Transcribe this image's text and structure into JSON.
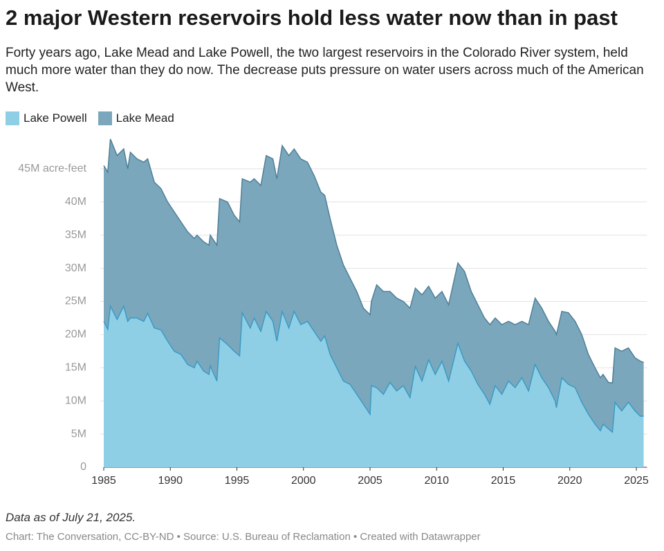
{
  "chart_data": {
    "type": "stacked_area",
    "title": "2 major Western reservoirs hold less water now than in past",
    "subtitle": "Forty years ago, Lake Mead and Lake Powell, the two largest reservoirs in the Colorado River system, held much more water than they do now. The decrease puts pressure on water users across much of the American West.",
    "note": "Data as of July 21, 2025.",
    "footer": "Chart: The Conversation, CC-BY-ND • Source: U.S. Bureau of Reclamation • Created with Datawrapper",
    "x": [
      1985.0,
      1985.3,
      1985.5,
      1986.0,
      1986.5,
      1986.8,
      1987.0,
      1987.5,
      1988.0,
      1988.3,
      1988.8,
      1989.3,
      1989.8,
      1990.3,
      1990.8,
      1991.3,
      1991.8,
      1992.0,
      1992.5,
      1992.9,
      1993.0,
      1993.5,
      1993.7,
      1994.3,
      1994.8,
      1995.2,
      1995.4,
      1996.0,
      1996.3,
      1996.8,
      1997.2,
      1997.7,
      1998.0,
      1998.4,
      1998.9,
      1999.3,
      1999.8,
      2000.3,
      2000.8,
      2001.3,
      2001.6,
      2002.0,
      2002.5,
      2003.0,
      2003.5,
      2004.0,
      2004.5,
      2005.0,
      2005.1,
      2005.5,
      2006.0,
      2006.5,
      2007.0,
      2007.5,
      2008.0,
      2008.4,
      2008.9,
      2009.4,
      2009.9,
      2010.4,
      2010.9,
      2011.6,
      2012.1,
      2012.6,
      2013.1,
      2013.6,
      2014.0,
      2014.4,
      2014.9,
      2015.4,
      2015.9,
      2016.4,
      2016.9,
      2017.4,
      2017.9,
      2018.4,
      2018.9,
      2019.0,
      2019.4,
      2019.9,
      2020.4,
      2020.9,
      2021.4,
      2021.9,
      2022.3,
      2022.5,
      2022.9,
      2023.2,
      2023.4,
      2023.9,
      2024.4,
      2024.9,
      2025.3,
      2025.55
    ],
    "series": [
      {
        "name": "Lake Powell",
        "color": "#8ecfe6",
        "line_color": "#3b9ac2",
        "values": [
          22,
          20.8,
          24.3,
          22.3,
          24.3,
          22,
          22.5,
          22.5,
          22,
          23.2,
          21,
          20.7,
          19,
          17.5,
          17,
          15.5,
          15,
          16,
          14.5,
          14,
          15.3,
          13,
          19.5,
          18.5,
          17.5,
          16.8,
          23.3,
          21,
          22.5,
          20.5,
          23.5,
          22,
          19,
          23.5,
          21,
          23.5,
          21.5,
          22,
          20.5,
          19,
          19.8,
          17,
          15,
          13,
          12.5,
          11,
          9.5,
          8,
          12.3,
          12,
          11,
          12.8,
          11.5,
          12.3,
          10.5,
          15.2,
          13,
          16.2,
          14,
          16,
          13,
          18.7,
          16,
          14.5,
          12.5,
          11,
          9.5,
          12.3,
          11,
          13,
          12,
          13.5,
          11.5,
          15.5,
          13.5,
          12,
          10,
          9,
          13.5,
          12.5,
          12,
          9.8,
          8,
          6.5,
          5.5,
          6.5,
          5.8,
          5.3,
          9.8,
          8.5,
          9.8,
          8.5,
          7.7,
          7.7
        ]
      },
      {
        "name": "Lake Mead",
        "color": "#7ba7bd",
        "line_color": "#4f7f97",
        "values": [
          23.5,
          23.7,
          25.2,
          24.7,
          23.7,
          23,
          25,
          24,
          24,
          23.3,
          22,
          21.3,
          21,
          21,
          20,
          20,
          19.5,
          19,
          19.5,
          19.5,
          19.7,
          20.5,
          21,
          21.5,
          20.5,
          20.2,
          20.2,
          22,
          21,
          22,
          23.5,
          24.5,
          24.5,
          25,
          26,
          24.5,
          25,
          24,
          23.5,
          22.5,
          21.2,
          20.5,
          18.5,
          17.5,
          16,
          15.5,
          14.5,
          15,
          12.7,
          15.5,
          15.5,
          13.7,
          14,
          12.7,
          13.5,
          11.8,
          13,
          11.1,
          11.5,
          10.5,
          11.5,
          12.1,
          13.5,
          12,
          12,
          11.5,
          12,
          10.2,
          10.5,
          9,
          9.5,
          8.5,
          10,
          10,
          10.5,
          10,
          10.5,
          11,
          10,
          10.8,
          10,
          10.2,
          9,
          8.5,
          8,
          7.5,
          7,
          7.4,
          8.2,
          9,
          8.2,
          8,
          8.3,
          8.1
        ]
      }
    ],
    "xlim": [
      1985,
      2025.8
    ],
    "ylim": [
      0,
      50
    ],
    "xticks": [
      1985,
      1990,
      1995,
      2000,
      2005,
      2010,
      2015,
      2020,
      2025
    ],
    "yticks": [
      0,
      {
        "value": 5,
        "label": "5M"
      },
      {
        "value": 10,
        "label": "10M"
      },
      {
        "value": 15,
        "label": "15M"
      },
      {
        "value": 20,
        "label": "20M"
      },
      {
        "value": 25,
        "label": "25M"
      },
      {
        "value": 30,
        "label": "30M"
      },
      {
        "value": 35,
        "label": "35M"
      },
      {
        "value": 40,
        "label": "40M"
      },
      {
        "value": 45,
        "label": "45M acre-feet"
      }
    ],
    "grid": true
  }
}
